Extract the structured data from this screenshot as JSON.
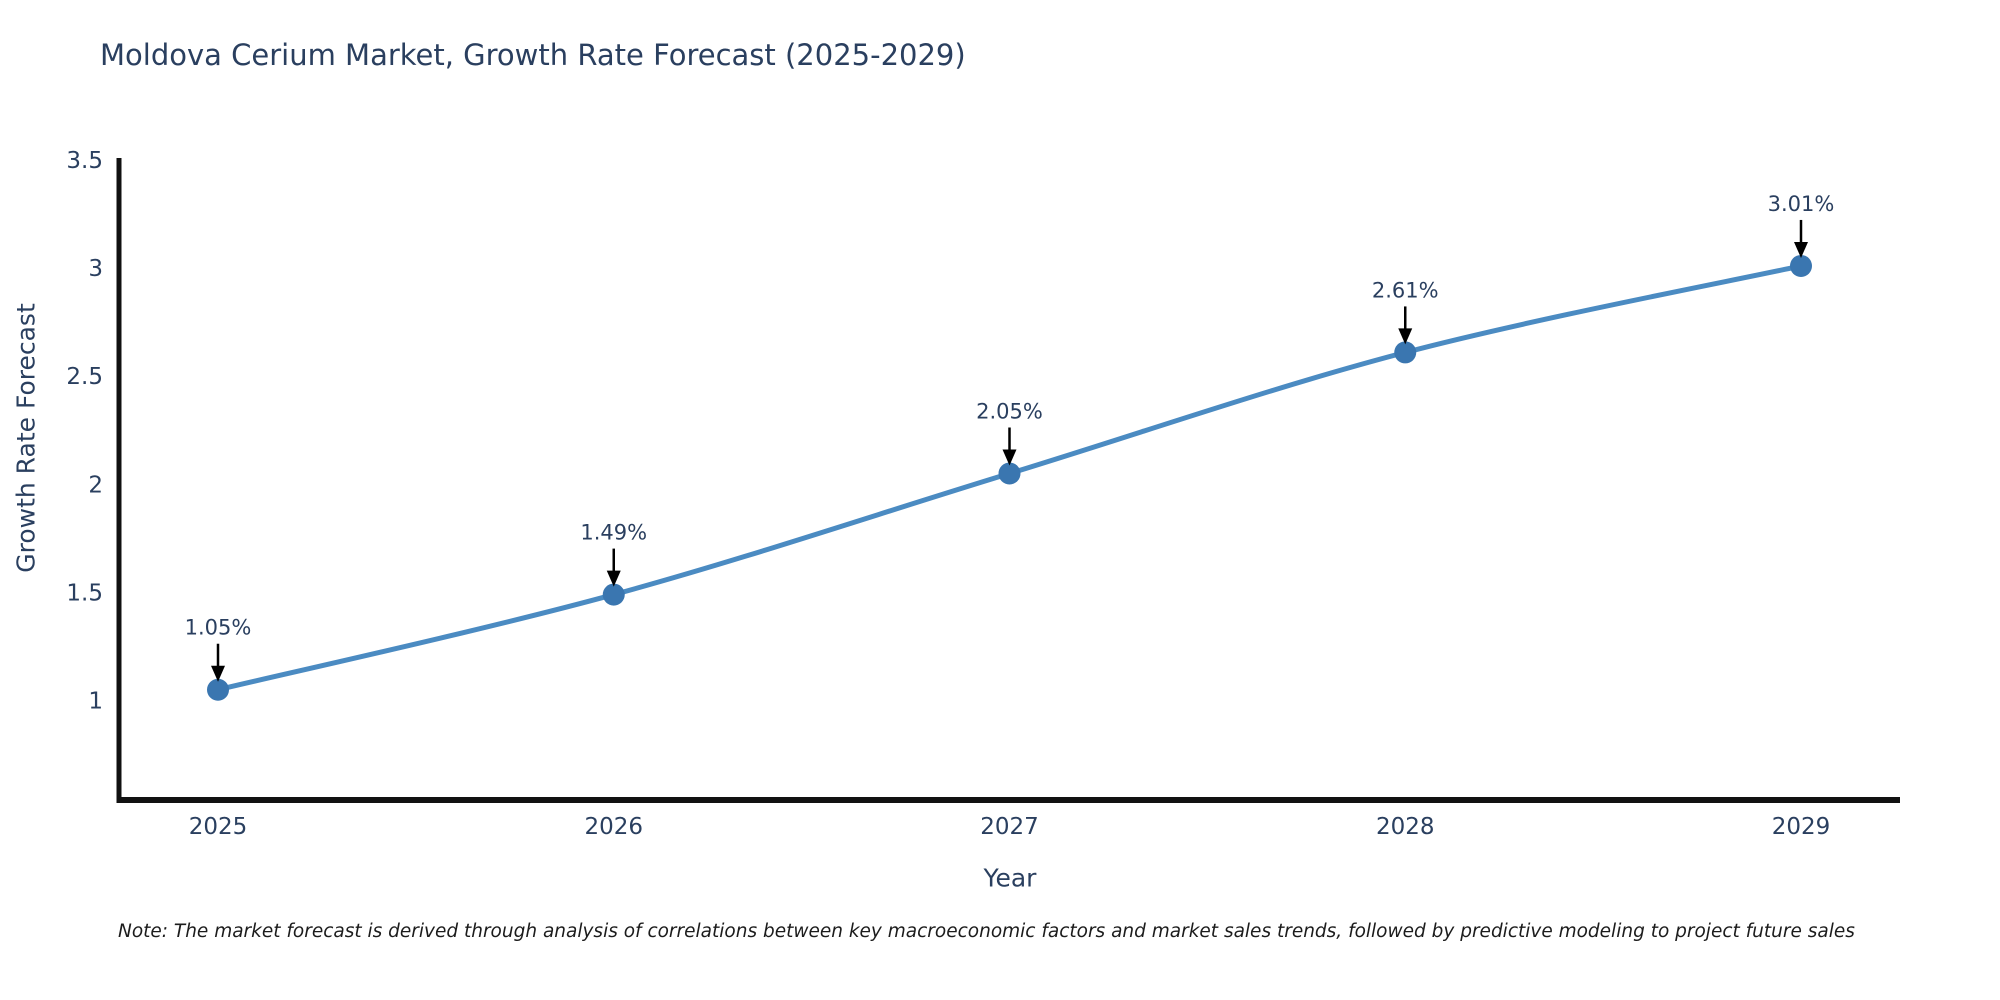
{
  "title": "Moldova Cerium Market, Growth Rate Forecast (2025-2029)",
  "note": "Note: The market forecast is derived through analysis of correlations between key macroeconomic factors and market sales trends, followed by predictive modeling to project future sales",
  "colors": {
    "title_text": "#2a3f5f",
    "tick_text": "#2a3f5f",
    "annotation_text": "#2a3f5f",
    "line": "#4b8bc2",
    "marker": "#3a76b0",
    "axis": "#111111",
    "arrow": "#000000",
    "note_text": "#1c1c1c",
    "background": "#ffffff"
  },
  "chart_data": {
    "type": "line",
    "title": "Moldova Cerium Market, Growth Rate Forecast (2025-2029)",
    "xlabel": "Year",
    "ylabel": "Growth Rate Forecast",
    "x": [
      "2025",
      "2026",
      "2027",
      "2028",
      "2029"
    ],
    "values": [
      1.05,
      1.49,
      2.05,
      2.61,
      3.01
    ],
    "point_labels": [
      "1.05%",
      "1.49%",
      "2.05%",
      "2.61%",
      "3.01%"
    ],
    "yticks": [
      1,
      1.5,
      2,
      2.5,
      3,
      3.5
    ],
    "ylim": [
      0.54,
      3.5
    ],
    "grid": false,
    "legend": false,
    "markers": "circle",
    "annotation_arrows": true
  }
}
